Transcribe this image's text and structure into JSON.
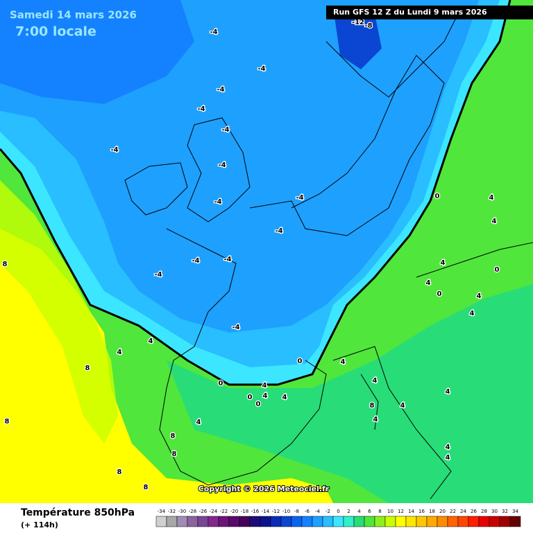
{
  "header": {
    "date": "Samedi 14 mars 2026",
    "time": "7:00 locale"
  },
  "run": "Run GFS 12 Z du Lundi 9 mars 2026",
  "copyright": "Copyright © 2026 Meteociel.fr",
  "footer": {
    "variable": "Température 850hPa",
    "lead": "(+ 114h)"
  },
  "legend": {
    "values": [
      -34,
      -32,
      -30,
      -28,
      -26,
      -24,
      -22,
      -20,
      -18,
      -16,
      -14,
      -12,
      -10,
      -8,
      -6,
      -4,
      -2,
      0,
      2,
      4,
      6,
      8,
      10,
      12,
      14,
      16,
      18,
      20,
      22,
      24,
      26,
      28,
      30,
      32,
      34
    ],
    "colors": [
      "#d0d0d0",
      "#a8a8a8",
      "#a08cb4",
      "#8c64a0",
      "#7a4696",
      "#82288c",
      "#6e1478",
      "#5a0a6e",
      "#46005a",
      "#1e0a78",
      "#0a148c",
      "#0a2cb4",
      "#0a46d2",
      "#0a64f0",
      "#1482ff",
      "#1ea0ff",
      "#28beff",
      "#3ce6ff",
      "#32f0c8",
      "#28dc78",
      "#50e63c",
      "#8cf01e",
      "#c8ff00",
      "#ffff00",
      "#ffe600",
      "#ffc800",
      "#ffaa00",
      "#ff8c00",
      "#ff6400",
      "#ff4600",
      "#ff1e00",
      "#e60000",
      "#c80000",
      "#a00000",
      "#640000"
    ]
  },
  "contour_labels": [
    -4,
    -4,
    -4,
    -4,
    -4,
    -4,
    -4,
    -4,
    -4,
    -4,
    -4,
    -4,
    -4,
    -4,
    -12,
    -8,
    0,
    0,
    0,
    0,
    0,
    0,
    0,
    4,
    4,
    4,
    4,
    4,
    4,
    4,
    4,
    4,
    4,
    4,
    4,
    4,
    4,
    4,
    4,
    4,
    4,
    4,
    8,
    8,
    8,
    8,
    8,
    8,
    8,
    8
  ]
}
